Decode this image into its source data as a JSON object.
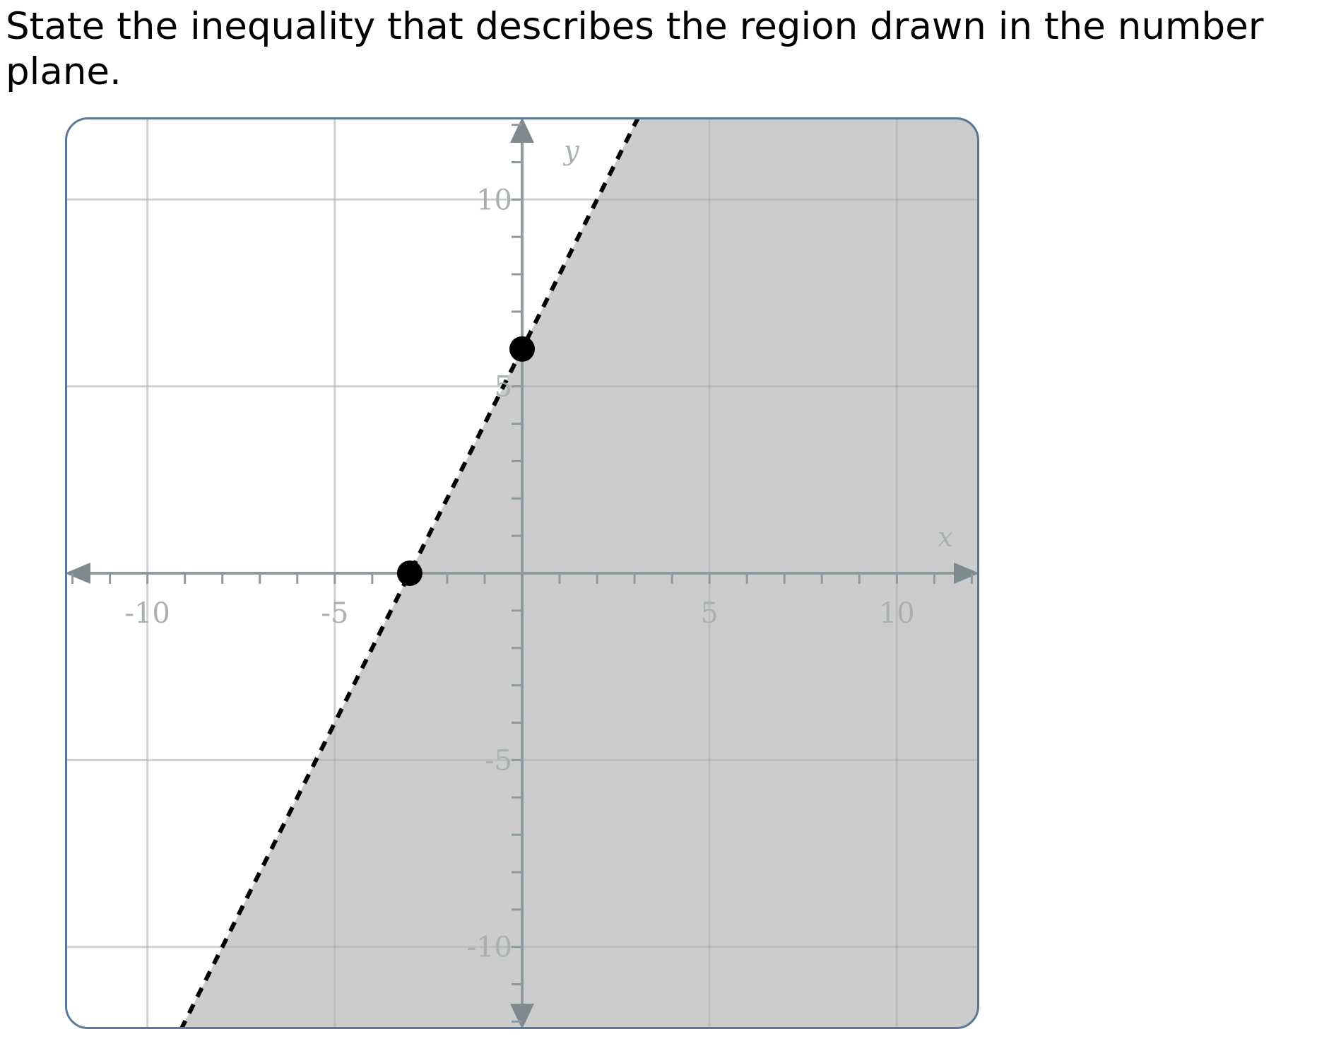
{
  "question": {
    "text": "State the inequality that describes the region drawn in the number plane."
  },
  "colors": {
    "shading": "#cccccc",
    "grid": "#e3e3e3",
    "axis": "#8e9a9e",
    "axis_arrow": "#7d8a8e",
    "boundary": "#000000",
    "frame_outer": "#9aa5ab",
    "frame_inner": "#5b7896",
    "tick_label": "#a9b0b2"
  },
  "chart_data": {
    "type": "scatter",
    "xlim": [
      -12.2,
      12.2
    ],
    "ylim": [
      -12.2,
      12.2
    ],
    "grid": true,
    "grid_step": 5,
    "minor_tick_step": 1,
    "x_tick_values": [
      -10,
      -5,
      5,
      10
    ],
    "x_tick_labels": [
      "-10",
      "-5",
      "5",
      "10"
    ],
    "y_tick_values": [
      10,
      5,
      -5,
      -10
    ],
    "y_tick_labels": [
      "10",
      "5",
      "-5",
      "-10"
    ],
    "xlabel": "x",
    "ylabel": "y",
    "boundary_line": {
      "through": [
        [
          -3,
          0
        ],
        [
          0,
          6
        ]
      ],
      "slope": 2,
      "intercept": 6,
      "style": "dashed"
    },
    "shaded_side": "below-right",
    "points": [
      {
        "x": -3,
        "y": 0
      },
      {
        "x": 0,
        "y": 6
      }
    ]
  }
}
